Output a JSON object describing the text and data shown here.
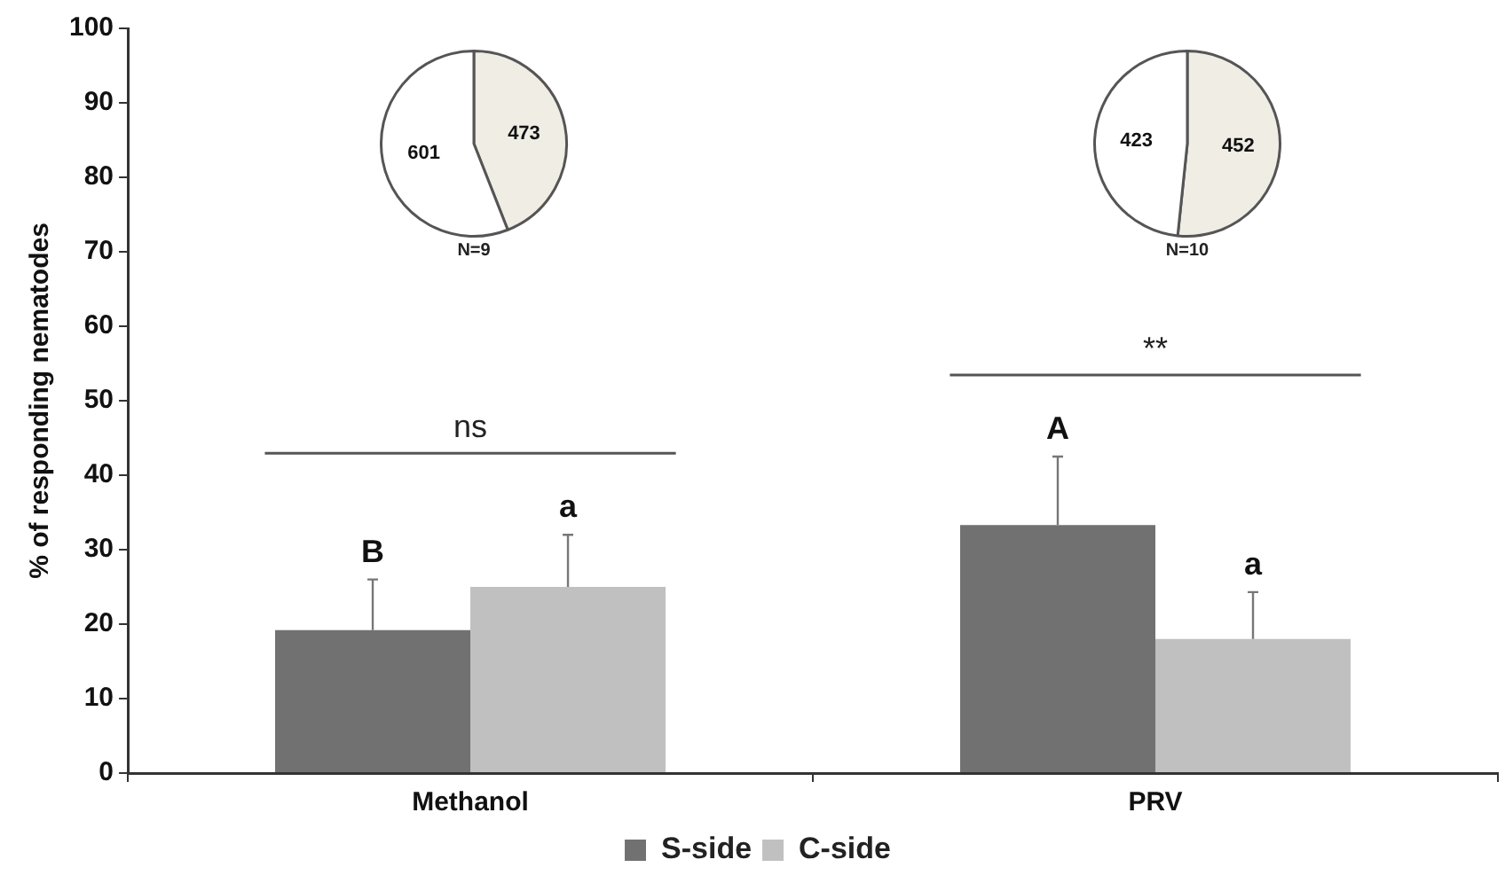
{
  "chart_data": [
    {
      "type": "bar",
      "ylabel": "% of responding nematodes",
      "categories": [
        "Methanol",
        "PRV"
      ],
      "series": [
        {
          "name": "S-side",
          "color": "#717171",
          "values": [
            19.2,
            33.3
          ],
          "errors": [
            [
              19.2,
              26
            ],
            [
              33.3,
              42.5
            ]
          ],
          "value_labels": [
            "B",
            "A"
          ]
        },
        {
          "name": "C-side",
          "color": "#c0c0c0",
          "values": [
            25,
            18
          ],
          "errors": [
            [
              25,
              32
            ],
            [
              18,
              24.3
            ]
          ],
          "value_labels": [
            "a",
            "a"
          ]
        }
      ],
      "ylim": [
        0,
        100
      ],
      "yticks": [
        0,
        10,
        20,
        30,
        40,
        50,
        60,
        70,
        80,
        90,
        100
      ],
      "grid": false,
      "legend": "bottom",
      "annotations": [
        "ns",
        "**"
      ]
    },
    {
      "type": "pie",
      "categories": [
        null,
        null
      ],
      "values": [
        473,
        601
      ],
      "colors": [
        "#efede4",
        "#ffffff"
      ],
      "data_labels": true,
      "annotations": [
        "N=9"
      ]
    },
    {
      "type": "pie",
      "categories": [
        null,
        null
      ],
      "values": [
        452,
        423
      ],
      "colors": [
        "#efede4",
        "#ffffff"
      ],
      "data_labels": true,
      "annotations": [
        "N=10"
      ]
    }
  ]
}
